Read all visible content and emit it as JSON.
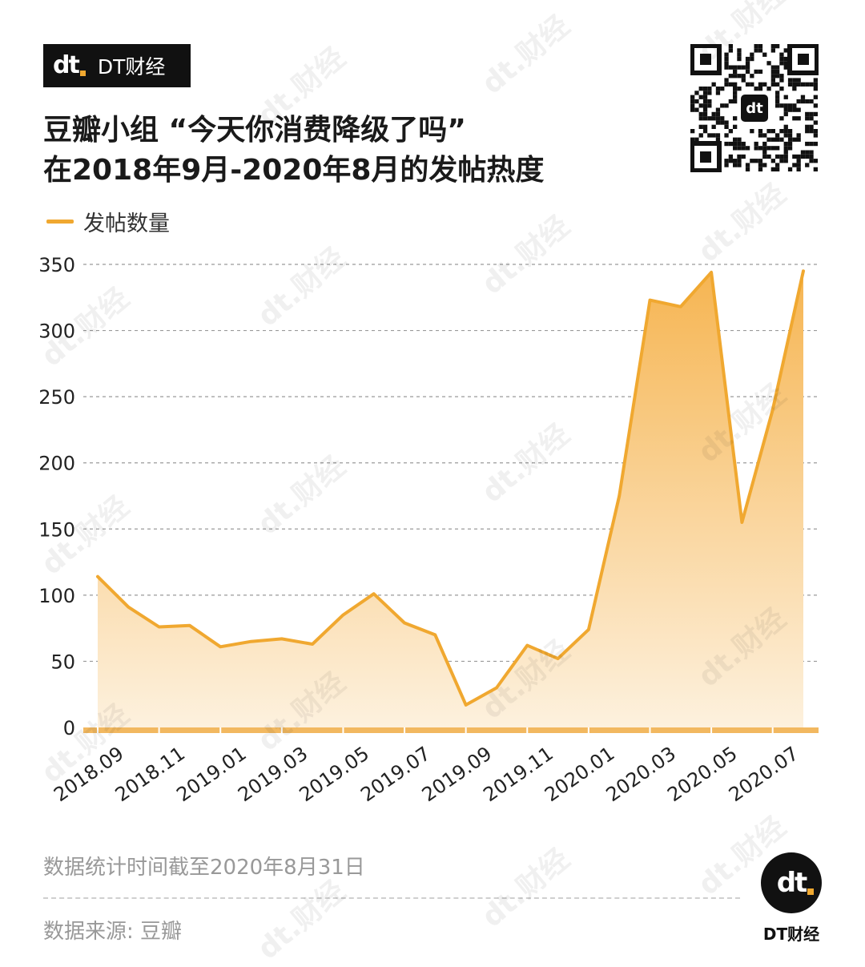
{
  "brand": {
    "logo_text": "dt",
    "name": "DT财经"
  },
  "header": {
    "title_line1": "豆瓣小组 “今天你消费降级了吗”",
    "title_line2": "在2018年9月-2020年8月的发帖热度"
  },
  "colors": {
    "accent": "#f0a830",
    "fill_top": "#f6b552",
    "fill_bottom": "#fdf1de",
    "grid": "#9a9a9a",
    "axis_band": "#f2b860"
  },
  "chart_data": {
    "type": "area",
    "title": "豆瓣小组 “今天你消费降级了吗” 在2018年9月-2020年8月的发帖热度",
    "series": [
      {
        "name": "发帖数量",
        "values": [
          114,
          91,
          76,
          77,
          61,
          65,
          67,
          63,
          85,
          101,
          79,
          70,
          17,
          30,
          62,
          52,
          74,
          175,
          323,
          318,
          344,
          155,
          240,
          345
        ]
      }
    ],
    "x": [
      "2018.09",
      "2018.10",
      "2018.11",
      "2018.12",
      "2019.01",
      "2019.02",
      "2019.03",
      "2019.04",
      "2019.05",
      "2019.06",
      "2019.07",
      "2019.08",
      "2019.09",
      "2019.10",
      "2019.11",
      "2019.12",
      "2020.01",
      "2020.02",
      "2020.03",
      "2020.04",
      "2020.05",
      "2020.06",
      "2020.07",
      "2020.08"
    ],
    "x_tick_labels": [
      "2018.09",
      "2018.11",
      "2019.01",
      "2019.03",
      "2019.05",
      "2019.07",
      "2019.09",
      "2019.11",
      "2020.01",
      "2020.03",
      "2020.05",
      "2020.07"
    ],
    "y_ticks": [
      0,
      50,
      100,
      150,
      200,
      250,
      300,
      350
    ],
    "ylim": [
      0,
      350
    ],
    "grid": true,
    "legend": "top-left"
  },
  "footer": {
    "note": "数据统计时间截至2020年8月31日",
    "source": "数据来源: 豆瓣",
    "logo_caption": "DT财经"
  },
  "watermark_text": "dt.财经"
}
